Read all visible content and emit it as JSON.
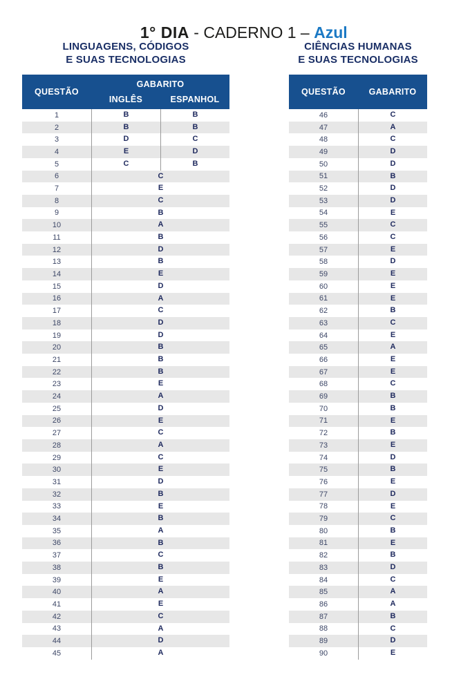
{
  "title": {
    "part_bold": "1° DIA",
    "part_mid": " - CADERNO 1 – ",
    "part_color": "Azul"
  },
  "colors": {
    "header_bg": "#17508f",
    "row_stripe": "#e7e7e7",
    "divider_line": "#9a9a9a",
    "answer_text": "#1f2a5e",
    "heading_text": "#1a2f66",
    "azul_accent": "#1b79c4"
  },
  "left_table": {
    "heading_line1": "LINGUAGENS, CÓDIGOS",
    "heading_line2": "E SUAS TECNOLOGIAS",
    "header": {
      "questao": "QUESTÃO",
      "gabarito": "GABARITO",
      "ingles": "INGLÊS",
      "espanhol": "ESPANHOL"
    },
    "language_rows": [
      {
        "q": "1",
        "ingles": "B",
        "espanhol": "B"
      },
      {
        "q": "2",
        "ingles": "B",
        "espanhol": "B"
      },
      {
        "q": "3",
        "ingles": "D",
        "espanhol": "C"
      },
      {
        "q": "4",
        "ingles": "E",
        "espanhol": "D"
      },
      {
        "q": "5",
        "ingles": "C",
        "espanhol": "B"
      }
    ],
    "single_rows": [
      {
        "q": "6",
        "answer": "C"
      },
      {
        "q": "7",
        "answer": "E"
      },
      {
        "q": "8",
        "answer": "C"
      },
      {
        "q": "9",
        "answer": "B"
      },
      {
        "q": "10",
        "answer": "A"
      },
      {
        "q": "11",
        "answer": "B"
      },
      {
        "q": "12",
        "answer": "D"
      },
      {
        "q": "13",
        "answer": "B"
      },
      {
        "q": "14",
        "answer": "E"
      },
      {
        "q": "15",
        "answer": "D"
      },
      {
        "q": "16",
        "answer": "A"
      },
      {
        "q": "17",
        "answer": "C"
      },
      {
        "q": "18",
        "answer": "D"
      },
      {
        "q": "19",
        "answer": "D"
      },
      {
        "q": "20",
        "answer": "B"
      },
      {
        "q": "21",
        "answer": "B"
      },
      {
        "q": "22",
        "answer": "B"
      },
      {
        "q": "23",
        "answer": "E"
      },
      {
        "q": "24",
        "answer": "A"
      },
      {
        "q": "25",
        "answer": "D"
      },
      {
        "q": "26",
        "answer": "E"
      },
      {
        "q": "27",
        "answer": "C"
      },
      {
        "q": "28",
        "answer": "A"
      },
      {
        "q": "29",
        "answer": "C"
      },
      {
        "q": "30",
        "answer": "E"
      },
      {
        "q": "31",
        "answer": "D"
      },
      {
        "q": "32",
        "answer": "B"
      },
      {
        "q": "33",
        "answer": "E"
      },
      {
        "q": "34",
        "answer": "B"
      },
      {
        "q": "35",
        "answer": "A"
      },
      {
        "q": "36",
        "answer": "B"
      },
      {
        "q": "37",
        "answer": "C"
      },
      {
        "q": "38",
        "answer": "B"
      },
      {
        "q": "39",
        "answer": "E"
      },
      {
        "q": "40",
        "answer": "A"
      },
      {
        "q": "41",
        "answer": "E"
      },
      {
        "q": "42",
        "answer": "C"
      },
      {
        "q": "43",
        "answer": "A"
      },
      {
        "q": "44",
        "answer": "D"
      },
      {
        "q": "45",
        "answer": "A"
      }
    ]
  },
  "right_table": {
    "heading_line1": "CIÊNCIAS HUMANAS",
    "heading_line2": "E SUAS TECNOLOGIAS",
    "header": {
      "questao": "QUESTÃO",
      "gabarito": "GABARITO"
    },
    "rows": [
      {
        "q": "46",
        "answer": "C"
      },
      {
        "q": "47",
        "answer": "A"
      },
      {
        "q": "48",
        "answer": "C"
      },
      {
        "q": "49",
        "answer": "D"
      },
      {
        "q": "50",
        "answer": "D"
      },
      {
        "q": "51",
        "answer": "B"
      },
      {
        "q": "52",
        "answer": "D"
      },
      {
        "q": "53",
        "answer": "D"
      },
      {
        "q": "54",
        "answer": "E"
      },
      {
        "q": "55",
        "answer": "C"
      },
      {
        "q": "56",
        "answer": "C"
      },
      {
        "q": "57",
        "answer": "E"
      },
      {
        "q": "58",
        "answer": "D"
      },
      {
        "q": "59",
        "answer": "E"
      },
      {
        "q": "60",
        "answer": "E"
      },
      {
        "q": "61",
        "answer": "E"
      },
      {
        "q": "62",
        "answer": "B"
      },
      {
        "q": "63",
        "answer": "C"
      },
      {
        "q": "64",
        "answer": "E"
      },
      {
        "q": "65",
        "answer": "A"
      },
      {
        "q": "66",
        "answer": "E"
      },
      {
        "q": "67",
        "answer": "E"
      },
      {
        "q": "68",
        "answer": "C"
      },
      {
        "q": "69",
        "answer": "B"
      },
      {
        "q": "70",
        "answer": "B"
      },
      {
        "q": "71",
        "answer": "E"
      },
      {
        "q": "72",
        "answer": "B"
      },
      {
        "q": "73",
        "answer": "E"
      },
      {
        "q": "74",
        "answer": "D"
      },
      {
        "q": "75",
        "answer": "B"
      },
      {
        "q": "76",
        "answer": "E"
      },
      {
        "q": "77",
        "answer": "D"
      },
      {
        "q": "78",
        "answer": "E"
      },
      {
        "q": "79",
        "answer": "C"
      },
      {
        "q": "80",
        "answer": "B"
      },
      {
        "q": "81",
        "answer": "E"
      },
      {
        "q": "82",
        "answer": "B"
      },
      {
        "q": "83",
        "answer": "D"
      },
      {
        "q": "84",
        "answer": "C"
      },
      {
        "q": "85",
        "answer": "A"
      },
      {
        "q": "86",
        "answer": "A"
      },
      {
        "q": "87",
        "answer": "B"
      },
      {
        "q": "88",
        "answer": "C"
      },
      {
        "q": "89",
        "answer": "D"
      },
      {
        "q": "90",
        "answer": "E"
      }
    ]
  }
}
